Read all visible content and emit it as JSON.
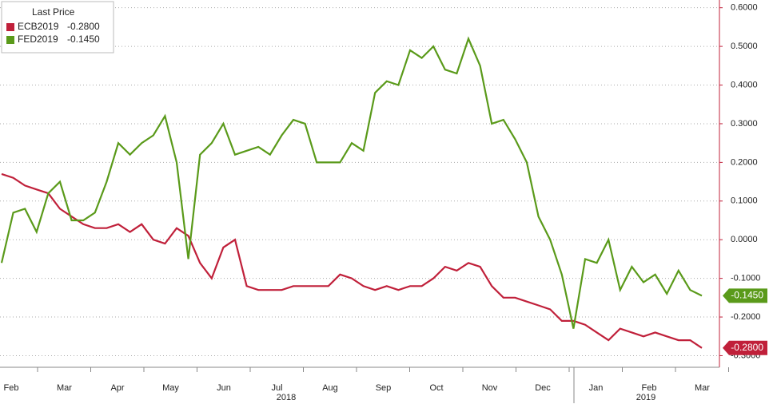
{
  "chart_data": {
    "type": "line",
    "legend_title": "Last Price",
    "legend": "top-left",
    "grid": true,
    "ylim": [
      -0.33,
      0.62
    ],
    "yticks": [
      {
        "value": 0.6,
        "label": "0.6000"
      },
      {
        "value": 0.5,
        "label": "0.5000"
      },
      {
        "value": 0.4,
        "label": "0.4000"
      },
      {
        "value": 0.3,
        "label": "0.3000"
      },
      {
        "value": 0.2,
        "label": "0.2000"
      },
      {
        "value": 0.1,
        "label": "0.1000"
      },
      {
        "value": 0,
        "label": "0.0000"
      },
      {
        "value": -0.1,
        "label": "-0.1000"
      },
      {
        "value": -0.2,
        "label": "-0.2000"
      },
      {
        "value": -0.3,
        "label": "-0.3000"
      }
    ],
    "months": [
      "Feb",
      "Mar",
      "Apr",
      "May",
      "Jun",
      "Jul",
      "Aug",
      "Sep",
      "Oct",
      "Nov",
      "Dec",
      "Jan",
      "Feb",
      "Mar"
    ],
    "years": [
      "2018",
      "2019"
    ],
    "series": [
      {
        "name": "ECB2019",
        "color": "#c0203a",
        "last_label": "-0.2800",
        "values": [
          0.17,
          0.16,
          0.14,
          0.13,
          0.12,
          0.08,
          0.06,
          0.04,
          0.03,
          0.03,
          0.04,
          0.02,
          0.04,
          0.0,
          -0.01,
          0.03,
          0.01,
          -0.06,
          -0.1,
          -0.02,
          0.0,
          -0.12,
          -0.13,
          -0.13,
          -0.13,
          -0.12,
          -0.12,
          -0.12,
          -0.12,
          -0.09,
          -0.1,
          -0.12,
          -0.13,
          -0.12,
          -0.13,
          -0.12,
          -0.12,
          -0.1,
          -0.07,
          -0.08,
          -0.06,
          -0.07,
          -0.12,
          -0.15,
          -0.15,
          -0.16,
          -0.17,
          -0.18,
          -0.21,
          -0.21,
          -0.22,
          -0.24,
          -0.26,
          -0.23,
          -0.24,
          -0.25,
          -0.24,
          -0.25,
          -0.26,
          -0.26,
          -0.28
        ]
      },
      {
        "name": "FED2019",
        "color": "#5a9a1a",
        "last_label": "-0.1450",
        "values": [
          -0.06,
          0.07,
          0.08,
          0.02,
          0.12,
          0.15,
          0.05,
          0.05,
          0.07,
          0.15,
          0.25,
          0.22,
          0.25,
          0.27,
          0.32,
          0.2,
          -0.05,
          0.22,
          0.25,
          0.3,
          0.22,
          0.23,
          0.24,
          0.22,
          0.27,
          0.31,
          0.3,
          0.2,
          0.2,
          0.2,
          0.25,
          0.23,
          0.38,
          0.41,
          0.4,
          0.49,
          0.47,
          0.5,
          0.44,
          0.43,
          0.52,
          0.45,
          0.3,
          0.31,
          0.26,
          0.2,
          0.06,
          0.0,
          -0.09,
          -0.23,
          -0.05,
          -0.06,
          0.0,
          -0.13,
          -0.07,
          -0.11,
          -0.09,
          -0.14,
          -0.08,
          -0.13,
          -0.145
        ]
      }
    ]
  }
}
